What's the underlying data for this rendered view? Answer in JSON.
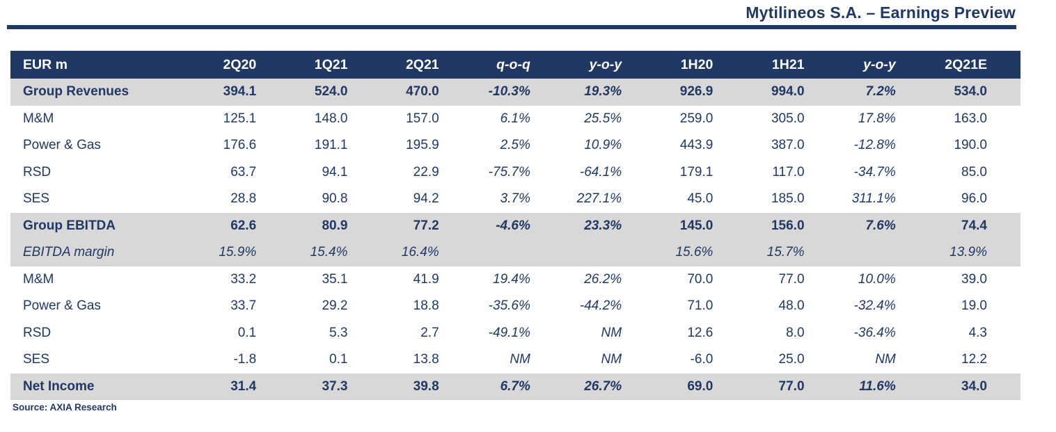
{
  "header": {
    "title": "Mytilineos S.A. – Earnings Preview"
  },
  "colors": {
    "navy": "#1F3864",
    "band_gray": "#D8D8D8",
    "header_text": "#FFFFFF"
  },
  "table": {
    "unit_label": "EUR m",
    "columns": [
      {
        "label": "EUR m",
        "italic": false
      },
      {
        "label": "2Q20",
        "italic": false
      },
      {
        "label": "1Q21",
        "italic": false
      },
      {
        "label": "2Q21",
        "italic": false
      },
      {
        "label": "q-o-q",
        "italic": true
      },
      {
        "label": "y-o-y",
        "italic": true
      },
      {
        "label": "1H20",
        "italic": false
      },
      {
        "label": "1H21",
        "italic": false
      },
      {
        "label": "y-o-y",
        "italic": true
      },
      {
        "label": "2Q21E",
        "italic": false
      }
    ],
    "rows": [
      {
        "label": "Group Revenues",
        "style": "total",
        "values": [
          "394.1",
          "524.0",
          "470.0",
          "-10.3%",
          "19.3%",
          "926.9",
          "994.0",
          "7.2%",
          "534.0"
        ]
      },
      {
        "label": "M&M",
        "style": "normal",
        "values": [
          "125.1",
          "148.0",
          "157.0",
          "6.1%",
          "25.5%",
          "259.0",
          "305.0",
          "17.8%",
          "163.0"
        ]
      },
      {
        "label": "Power & Gas",
        "style": "normal",
        "values": [
          "176.6",
          "191.1",
          "195.9",
          "2.5%",
          "10.9%",
          "443.9",
          "387.0",
          "-12.8%",
          "190.0"
        ]
      },
      {
        "label": "RSD",
        "style": "normal",
        "values": [
          "63.7",
          "94.1",
          "22.9",
          "-75.7%",
          "-64.1%",
          "179.1",
          "117.0",
          "-34.7%",
          "85.0"
        ]
      },
      {
        "label": "SES",
        "style": "normal",
        "values": [
          "28.8",
          "90.8",
          "94.2",
          "3.7%",
          "227.1%",
          "45.0",
          "185.0",
          "311.1%",
          "96.0"
        ]
      },
      {
        "label": "Group EBITDA",
        "style": "total",
        "values": [
          "62.6",
          "80.9",
          "77.2",
          "-4.6%",
          "23.3%",
          "145.0",
          "156.0",
          "7.6%",
          "74.4"
        ]
      },
      {
        "label": "EBITDA margin",
        "style": "margin",
        "values": [
          "15.9%",
          "15.4%",
          "16.4%",
          "",
          "",
          "15.6%",
          "15.7%",
          "",
          "13.9%"
        ]
      },
      {
        "label": "M&M",
        "style": "normal",
        "values": [
          "33.2",
          "35.1",
          "41.9",
          "19.4%",
          "26.2%",
          "70.0",
          "77.0",
          "10.0%",
          "39.0"
        ]
      },
      {
        "label": "Power & Gas",
        "style": "normal",
        "values": [
          "33.7",
          "29.2",
          "18.8",
          "-35.6%",
          "-44.2%",
          "71.0",
          "48.0",
          "-32.4%",
          "19.0"
        ]
      },
      {
        "label": "RSD",
        "style": "normal",
        "values": [
          "0.1",
          "5.3",
          "2.7",
          "-49.1%",
          "NM",
          "12.6",
          "8.0",
          "-36.4%",
          "4.3"
        ]
      },
      {
        "label": "SES",
        "style": "normal",
        "values": [
          "-1.8",
          "0.1",
          "13.8",
          "NM",
          "NM",
          "-6.0",
          "25.0",
          "NM",
          "12.2"
        ]
      },
      {
        "label": "Net Income",
        "style": "total",
        "values": [
          "31.4",
          "37.3",
          "39.8",
          "6.7%",
          "26.7%",
          "69.0",
          "77.0",
          "11.6%",
          "34.0"
        ]
      }
    ]
  },
  "footer": {
    "source": "Source: AXIA Research"
  }
}
